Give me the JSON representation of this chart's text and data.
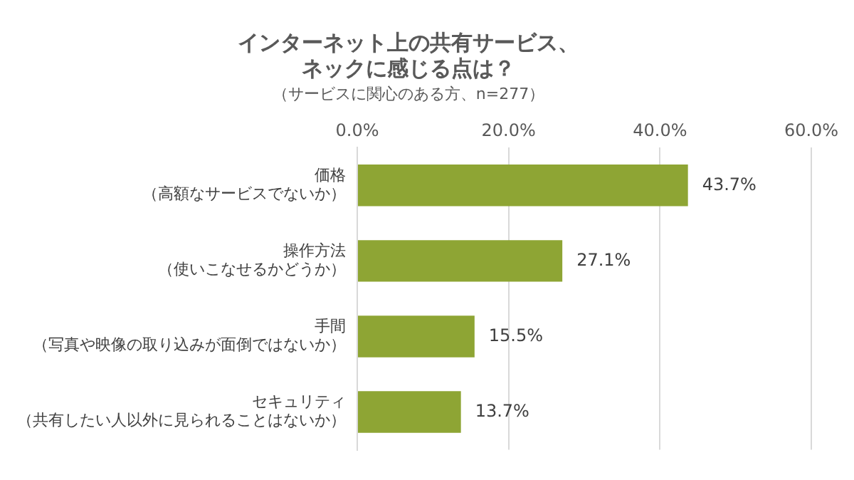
{
  "chart_data": {
    "type": "bar",
    "orientation": "horizontal",
    "title": "インターネット上の共有サービス、ネックに感じる点は？",
    "subtitle": "（サービスに関心のある方、n=277）",
    "categories": [
      "価格（高額なサービスでないか）",
      "操作方法（使いこなせるかどうか）",
      "手間（写真や映像の取り込みが面倒ではないか）",
      "セキュリティ（共有したい人以外に見られることはないか）"
    ],
    "values": [
      43.7,
      27.1,
      15.5,
      13.7
    ],
    "value_labels": [
      "43.7%",
      "27.1%",
      "15.5%",
      "13.7%"
    ],
    "color": "#8ea534",
    "xlim": [
      0,
      60
    ],
    "xticks": [
      {
        "value": 0,
        "label": "0.0%"
      },
      {
        "value": 20,
        "label": "20.0%"
      },
      {
        "value": 40,
        "label": "40.0%"
      },
      {
        "value": 60,
        "label": "60.0%"
      }
    ],
    "grid": "x",
    "legend": false
  }
}
